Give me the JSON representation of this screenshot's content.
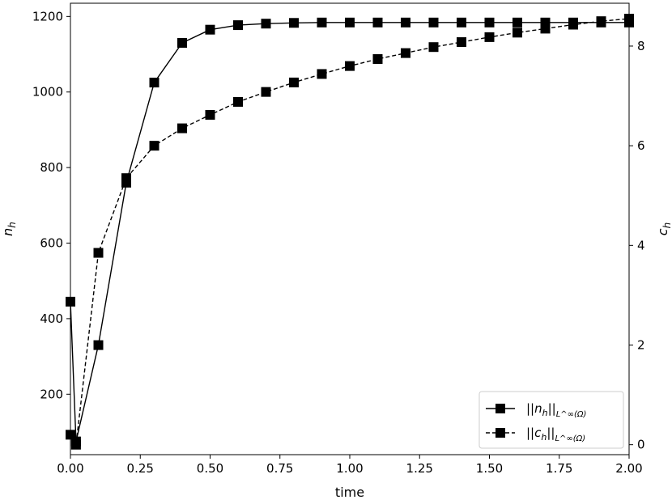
{
  "chart_data": {
    "type": "line",
    "xlabel": "time",
    "ylabel_left": "n_h",
    "ylabel_right": "c_h",
    "xlim": [
      0,
      2
    ],
    "ylim_left": [
      40,
      1235
    ],
    "ylim_right": [
      -0.2,
      8.86
    ],
    "x_ticks": [
      "0.00",
      "0.25",
      "0.50",
      "0.75",
      "1.00",
      "1.25",
      "1.50",
      "1.75",
      "2.00"
    ],
    "y_left_ticks": [
      "200",
      "400",
      "600",
      "800",
      "1000",
      "1200"
    ],
    "y_right_ticks": [
      "0",
      "2",
      "4",
      "6",
      "8"
    ],
    "grid": false,
    "legend_position": "lower right",
    "series": [
      {
        "name": "||n_h||_{L^∞(Ω)}",
        "axis": "left",
        "linestyle": "solid",
        "marker": "square",
        "x": [
          0.0,
          0.02,
          0.1,
          0.2,
          0.3,
          0.4,
          0.5,
          0.6,
          0.7,
          0.8,
          0.9,
          1.0,
          1.1,
          1.2,
          1.3,
          1.4,
          1.5,
          1.6,
          1.7,
          1.8,
          1.9,
          2.0
        ],
        "values": [
          445,
          75,
          330,
          760,
          1025,
          1130,
          1165,
          1177,
          1181,
          1183,
          1184,
          1184,
          1184,
          1184,
          1184,
          1184,
          1184,
          1184,
          1184,
          1184,
          1184,
          1184
        ]
      },
      {
        "name": "||c_h||_{L^∞(Ω)}",
        "axis": "right",
        "linestyle": "dashed",
        "marker": "square",
        "x": [
          0.0,
          0.02,
          0.1,
          0.2,
          0.3,
          0.4,
          0.5,
          0.6,
          0.7,
          0.8,
          0.9,
          1.0,
          1.1,
          1.2,
          1.3,
          1.4,
          1.5,
          1.6,
          1.7,
          1.8,
          1.9,
          2.0
        ],
        "values": [
          0.2,
          0.0,
          3.85,
          5.35,
          6.0,
          6.35,
          6.62,
          6.88,
          7.08,
          7.27,
          7.44,
          7.6,
          7.74,
          7.86,
          7.98,
          8.08,
          8.18,
          8.27,
          8.35,
          8.43,
          8.5,
          8.55
        ]
      }
    ]
  }
}
